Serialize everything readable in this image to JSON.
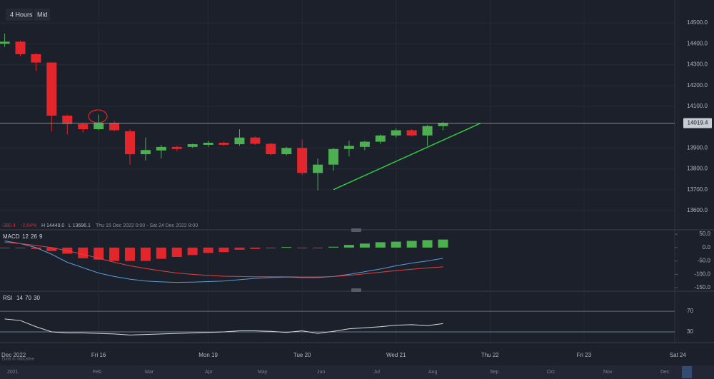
{
  "toolbar": {
    "interval": "4 Hours",
    "price_type": "Mid"
  },
  "info_bar": {
    "change": "-380.4",
    "change_percent": "-2.64%",
    "high": "H 14449.0",
    "low": "L 13696.1",
    "range": "Thu 15 Dec 2022 0:00 - Sat 24 Dec 2022 8:00"
  },
  "navigator": {
    "note": "Data is indicative",
    "labels": [
      "2021",
      "Feb",
      "Mar",
      "Apr",
      "May",
      "Jun",
      "Jul",
      "Aug",
      "Sep",
      "Oct",
      "Nov",
      "Dec"
    ]
  },
  "chart_data": [
    {
      "type": "candlestick",
      "categories": [
        null,
        null,
        null,
        null,
        null,
        null,
        null,
        null,
        null,
        null,
        null,
        null,
        null,
        null,
        null,
        null,
        null,
        null,
        null,
        null,
        null,
        null,
        null,
        null,
        null,
        null,
        null,
        null,
        null
      ],
      "open": [
        14399.8,
        14410,
        14350,
        14310,
        14055,
        14015,
        13990,
        14020,
        13980,
        13870,
        13888,
        13905,
        13905,
        13915,
        13925,
        13918,
        13950,
        13920,
        13870,
        13900,
        13780,
        13820,
        13895,
        13905,
        13930,
        13960,
        13985,
        13960,
        14005
      ],
      "high": [
        14449,
        14415,
        14355,
        14310,
        14060,
        14020,
        14060,
        14030,
        13990,
        13950,
        13915,
        13910,
        13920,
        13935,
        13930,
        13990,
        13955,
        13925,
        13905,
        13940,
        13850,
        13900,
        13935,
        13935,
        13965,
        13995,
        13990,
        14010,
        14025
      ],
      "low": [
        14385,
        14340,
        14270,
        13980,
        13965,
        13975,
        13985,
        13980,
        13820,
        13840,
        13850,
        13885,
        13900,
        13905,
        13910,
        13910,
        13915,
        13865,
        13865,
        13770,
        13696.1,
        13790,
        13860,
        13890,
        13920,
        13950,
        13955,
        13910,
        13985
      ],
      "close": [
        14410,
        14350,
        14310,
        14055,
        14015,
        13990,
        14020,
        13985,
        13870,
        13890,
        13905,
        13895,
        13918,
        13925,
        13915,
        13950,
        13920,
        13870,
        13900,
        13780,
        13820,
        13895,
        13910,
        13930,
        13960,
        13985,
        13960,
        14005,
        14019.4
      ],
      "up_color": "#4caf50",
      "down_color": "#e3262b",
      "xlim": [
        -0.3,
        42.8
      ],
      "xticks": [
        {
          "value": 0.5,
          "label": "Dec 2022"
        },
        {
          "value": 6,
          "label": "Fri 16"
        },
        {
          "value": 13,
          "label": "Mon 19"
        },
        {
          "value": 19,
          "label": "Tue 20"
        },
        {
          "value": 25,
          "label": "Wed 21"
        },
        {
          "value": 31,
          "label": "Thu 22"
        },
        {
          "value": 37,
          "label": "Fri 23"
        },
        {
          "value": 43,
          "label": "Sat 24"
        }
      ],
      "ylim": [
        13514,
        14610
      ],
      "yticks": [
        {
          "value": 14500,
          "label": "14500.0"
        },
        {
          "value": 14400,
          "label": "14400.0"
        },
        {
          "value": 14300,
          "label": "14300.0"
        },
        {
          "value": 14200,
          "label": "14200.0"
        },
        {
          "value": 14100,
          "label": "14100.0"
        },
        {
          "value": 13900,
          "label": "13900.0"
        },
        {
          "value": 13800,
          "label": "13800.0"
        },
        {
          "value": 13700,
          "label": "13700.0"
        },
        {
          "value": 13600,
          "label": "13600.0"
        }
      ],
      "last_price": 14019.4,
      "trendline": {
        "x": [
          21,
          30.4
        ],
        "values": [
          13700,
          14019
        ],
        "color": "#2ecc40"
      },
      "grid": true
    },
    {
      "type": "macd",
      "title": "MACD",
      "params": [
        12,
        26,
        9
      ],
      "ylim": [
        -163,
        61
      ],
      "yticks": [
        {
          "value": 50,
          "label": "50.0"
        },
        {
          "value": 0,
          "label": "0.0"
        },
        {
          "value": -50,
          "label": "-50.0"
        },
        {
          "value": -100,
          "label": "-100.0"
        },
        {
          "value": -150,
          "label": "-150.0"
        }
      ],
      "histogram": {
        "values": [
          -1,
          -2,
          -5,
          -13,
          -23,
          -40,
          -45,
          -50,
          -50,
          -50,
          -42,
          -35,
          -28,
          -20,
          -17,
          -8,
          -5,
          -2,
          2,
          -2,
          -1,
          3,
          10,
          15,
          20,
          22,
          25,
          28,
          30
        ],
        "up_color": "#4caf50",
        "down_color": "#e3262b"
      },
      "macd_line": {
        "values": [
          25,
          15,
          0,
          -25,
          -55,
          -75,
          -95,
          -108,
          -118,
          -125,
          -128,
          -130,
          -129,
          -127,
          -125,
          -120,
          -115,
          -112,
          -110,
          -112,
          -112,
          -108,
          -100,
          -90,
          -80,
          -68,
          -58,
          -50,
          -40
        ],
        "color": "#5b9bd5"
      },
      "signal_line": {
        "values": [
          20,
          15,
          8,
          0,
          -12,
          -25,
          -40,
          -55,
          -68,
          -78,
          -87,
          -95,
          -100,
          -104,
          -107,
          -108,
          -109,
          -109,
          -109,
          -110,
          -110,
          -108,
          -104,
          -98,
          -92,
          -86,
          -81,
          -76,
          -72
        ],
        "color": "#e0433f"
      }
    },
    {
      "type": "rsi",
      "title": "RSI",
      "params": [
        14,
        70,
        30
      ],
      "ylim": [
        12,
        106
      ],
      "yticks": [
        70,
        30
      ],
      "values": [
        55,
        52,
        40,
        30,
        28,
        28,
        27,
        26,
        24,
        25,
        26,
        27,
        28,
        29,
        30,
        32,
        32,
        31,
        29,
        32,
        27,
        31,
        36,
        38,
        40,
        43,
        44,
        42,
        46
      ],
      "color": "#d9d9d9"
    }
  ]
}
